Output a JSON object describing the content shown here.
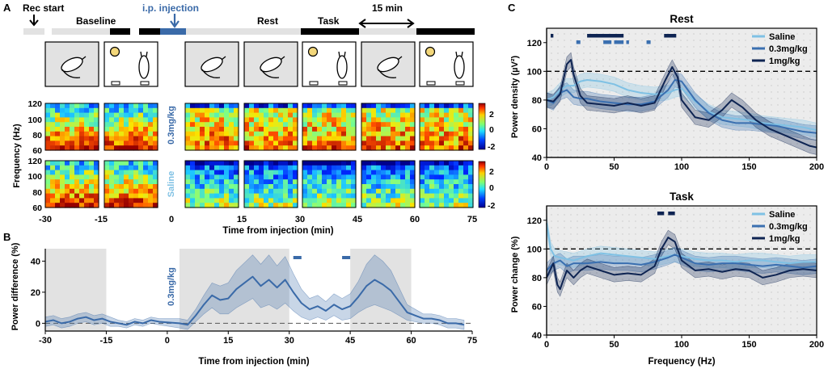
{
  "panel_labels": {
    "a": "A",
    "b": "B",
    "c": "C"
  },
  "timeline": {
    "rec_start": "Rec start",
    "injection": "i.p. injection",
    "baseline": "Baseline",
    "rest": "Rest",
    "task": "Task",
    "interval": "15 min"
  },
  "colors": {
    "saline": "#7fc1e4",
    "dose03": "#3a6fb0",
    "dose1": "#0e2452",
    "mid_blue": "#3a6aa8",
    "shade": "#e2e2e2",
    "black": "#000000"
  },
  "heatmap": {
    "ylabel": "Frequency (Hz)",
    "yticks": [
      "120",
      "100",
      "80",
      "60"
    ],
    "row1_label": "0.3mg/kg",
    "row2_label": "Saline",
    "colorbar_ticks": [
      "2",
      "0",
      "-2"
    ]
  },
  "xaxis_a": {
    "ticks": [
      "-30",
      "-15",
      "0",
      "15",
      "30",
      "45",
      "60",
      "75"
    ],
    "label": "Time from injection (min)"
  },
  "chart_data": [
    {
      "panel": "B",
      "type": "line",
      "title": "",
      "xlabel": "Time from injection (min)",
      "ylabel": "Power difference (%)",
      "annotation": "0.3mg/kg",
      "xlim": [
        -30,
        75
      ],
      "ylim": [
        -5,
        48
      ],
      "xticks": [
        "-30",
        "-15",
        "0",
        "15",
        "30",
        "45",
        "60",
        "75"
      ],
      "yticks": [
        "0",
        "20",
        "40"
      ],
      "shaded_epochs": [
        [
          -30,
          -15
        ],
        [
          3,
          30
        ],
        [
          45,
          60
        ]
      ],
      "significance_bars": [
        [
          31,
          33
        ],
        [
          43,
          45
        ]
      ],
      "series": [
        {
          "name": "0.3mg/kg",
          "x": [
            -30,
            -28,
            -26,
            -24,
            -22,
            -20,
            -18,
            -16,
            -14,
            -12,
            -10,
            -8,
            -6,
            -4,
            -2,
            3,
            5,
            7,
            9,
            11,
            13,
            15,
            17,
            19,
            21,
            23,
            25,
            27,
            29,
            31,
            33,
            35,
            37,
            39,
            41,
            43,
            45,
            47,
            49,
            51,
            53,
            55,
            57,
            59,
            61,
            63,
            65,
            67,
            69,
            71,
            73
          ],
          "y": [
            1,
            2,
            0,
            1,
            3,
            4,
            2,
            3,
            1,
            0,
            -1,
            1,
            0,
            2,
            1,
            0,
            -1,
            5,
            12,
            18,
            15,
            16,
            22,
            26,
            30,
            24,
            28,
            23,
            28,
            20,
            13,
            9,
            11,
            8,
            12,
            9,
            11,
            17,
            24,
            28,
            25,
            21,
            14,
            7,
            5,
            3,
            3,
            2,
            0,
            0,
            -1
          ],
          "band": [
            3,
            3,
            3,
            3,
            3,
            3,
            3,
            3,
            3,
            2,
            2,
            2,
            2,
            2,
            2,
            3,
            3,
            4,
            6,
            8,
            9,
            10,
            12,
            13,
            14,
            14,
            16,
            14,
            15,
            12,
            9,
            7,
            7,
            6,
            7,
            7,
            8,
            10,
            14,
            16,
            15,
            13,
            9,
            5,
            4,
            3,
            3,
            3,
            3,
            3,
            3
          ]
        }
      ]
    },
    {
      "panel": "C-Rest",
      "type": "line",
      "title": "Rest",
      "xlabel": "",
      "ylabel": "Power density (µV²)",
      "xlim": [
        0,
        200
      ],
      "ylim": [
        40,
        130
      ],
      "xticks": [
        "0",
        "50",
        "100",
        "150",
        "200"
      ],
      "yticks": [
        "40",
        "60",
        "80",
        "100",
        "120"
      ],
      "reference": 100,
      "legend": [
        "Saline",
        "0.3mg/kg",
        "1mg/kg"
      ],
      "significance": {
        "dose1": [
          [
            3,
            5
          ],
          [
            30,
            57
          ],
          [
            87,
            96
          ]
        ],
        "dose03": [
          [
            22,
            25
          ],
          [
            42,
            48
          ],
          [
            50,
            57
          ],
          [
            59,
            61
          ],
          [
            74,
            77
          ]
        ]
      },
      "series": [
        {
          "name": "Saline",
          "x": [
            0,
            5,
            10,
            15,
            20,
            25,
            30,
            40,
            50,
            60,
            70,
            80,
            90,
            95,
            100,
            110,
            120,
            130,
            140,
            150,
            160,
            170,
            180,
            190,
            200
          ],
          "y": [
            80,
            82,
            87,
            90,
            90,
            93,
            94,
            93,
            91,
            87,
            85,
            84,
            85,
            87,
            88,
            79,
            72,
            68,
            67,
            66,
            64,
            63,
            62,
            61,
            59
          ]
        },
        {
          "name": "0.3mg/kg",
          "x": [
            0,
            5,
            10,
            15,
            20,
            25,
            30,
            40,
            50,
            60,
            70,
            80,
            90,
            95,
            100,
            110,
            120,
            130,
            140,
            150,
            160,
            170,
            180,
            190,
            200
          ],
          "y": [
            80,
            78,
            85,
            87,
            82,
            81,
            81,
            79,
            78,
            77,
            77,
            79,
            87,
            94,
            93,
            80,
            71,
            66,
            64,
            64,
            63,
            62,
            60,
            58,
            57
          ]
        },
        {
          "name": "1mg/kg",
          "x": [
            0,
            5,
            10,
            15,
            18,
            20,
            25,
            30,
            40,
            50,
            60,
            70,
            80,
            88,
            93,
            97,
            100,
            110,
            120,
            130,
            137,
            145,
            155,
            165,
            175,
            185,
            195,
            200
          ],
          "y": [
            80,
            79,
            84,
            105,
            108,
            98,
            83,
            78,
            77,
            76,
            78,
            76,
            78,
            94,
            103,
            96,
            80,
            68,
            66,
            73,
            80,
            75,
            66,
            60,
            56,
            52,
            48,
            47
          ]
        }
      ]
    },
    {
      "panel": "C-Task",
      "type": "line",
      "title": "Task",
      "xlabel": "Frequency (Hz)",
      "ylabel": "Power change (%)",
      "xlim": [
        0,
        200
      ],
      "ylim": [
        40,
        130
      ],
      "xticks": [
        "0",
        "50",
        "100",
        "150",
        "200"
      ],
      "yticks": [
        "40",
        "60",
        "80",
        "100",
        "120"
      ],
      "reference": 100,
      "legend": [
        "Saline",
        "0.3mg/kg",
        "1mg/kg"
      ],
      "significance": {
        "dose1": [
          [
            82,
            87
          ],
          [
            90,
            95
          ]
        ]
      },
      "series": [
        {
          "name": "Saline",
          "x": [
            0,
            3,
            6,
            10,
            20,
            30,
            40,
            50,
            60,
            70,
            80,
            90,
            95,
            100,
            110,
            120,
            130,
            140,
            150,
            160,
            170,
            180,
            190,
            200
          ],
          "y": [
            118,
            100,
            95,
            94,
            92,
            95,
            97,
            96,
            95,
            94,
            93,
            95,
            96,
            95,
            93,
            92,
            92,
            91,
            92,
            92,
            91,
            90,
            91,
            91
          ]
        },
        {
          "name": "0.3mg/kg",
          "x": [
            0,
            5,
            10,
            15,
            20,
            30,
            40,
            50,
            60,
            70,
            80,
            90,
            95,
            100,
            110,
            120,
            130,
            140,
            150,
            160,
            170,
            180,
            190,
            200
          ],
          "y": [
            85,
            90,
            92,
            88,
            90,
            90,
            91,
            90,
            90,
            89,
            91,
            94,
            96,
            94,
            90,
            89,
            90,
            90,
            89,
            88,
            89,
            88,
            87,
            88
          ]
        },
        {
          "name": "1mg/kg",
          "x": [
            0,
            5,
            8,
            10,
            13,
            15,
            20,
            25,
            30,
            40,
            50,
            60,
            70,
            80,
            85,
            90,
            95,
            100,
            110,
            120,
            130,
            140,
            150,
            160,
            170,
            180,
            190,
            200
          ],
          "y": [
            80,
            90,
            75,
            72,
            80,
            85,
            80,
            85,
            88,
            85,
            82,
            83,
            82,
            88,
            100,
            108,
            105,
            92,
            85,
            86,
            84,
            86,
            85,
            80,
            82,
            85,
            86,
            85
          ]
        }
      ]
    }
  ]
}
